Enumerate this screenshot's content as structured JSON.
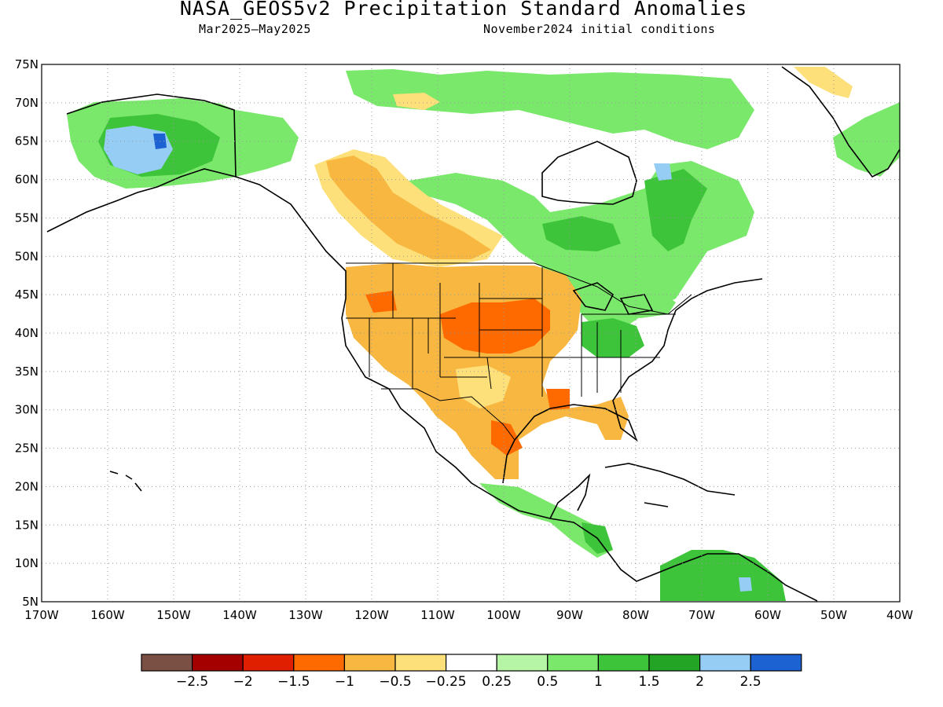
{
  "title": "NASA_GEOS5v2 Precipitation Standard Anomalies",
  "subtitle_left": "Mar2025–May2025",
  "subtitle_right": "November2024 initial conditions",
  "map": {
    "lon_range": [
      -170,
      -40
    ],
    "lat_range": [
      5,
      75
    ],
    "lat_ticks": [
      "75N",
      "70N",
      "65N",
      "60N",
      "55N",
      "50N",
      "45N",
      "40N",
      "35N",
      "30N",
      "25N",
      "20N",
      "15N",
      "10N",
      "5N"
    ],
    "lon_ticks": [
      "170W",
      "160W",
      "150W",
      "140W",
      "130W",
      "120W",
      "110W",
      "100W",
      "90W",
      "80W",
      "70W",
      "60W",
      "50W",
      "40W"
    ],
    "gridlines": "dotted"
  },
  "colorbar": {
    "labels": [
      "−2.5",
      "−2",
      "−1.5",
      "−1",
      "−0.5",
      "−0.25",
      "0.25",
      "0.5",
      "1",
      "1.5",
      "2",
      "2.5"
    ],
    "colors": [
      "#7b5044",
      "#a50000",
      "#e01f00",
      "#ff6a00",
      "#f8b740",
      "#fde07a",
      "#ffffff",
      "#b5f5a5",
      "#7ae86b",
      "#3ec43a",
      "#24a424",
      "#96cdf5",
      "#1d62d2"
    ]
  },
  "colors": {
    "dry_light": "#fde07a",
    "dry_moderate": "#f8b740",
    "dry_strong": "#ff6a00",
    "wet_light": "#7ae86b",
    "wet_moderate": "#3ec43a",
    "wet_strong_blue": "#96cdf5"
  }
}
